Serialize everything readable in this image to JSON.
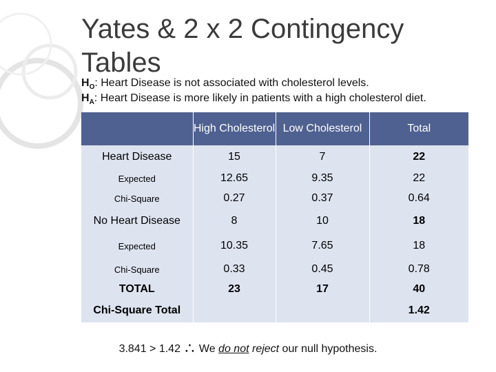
{
  "title": "Yates & 2 x 2 Contingency Tables",
  "hypotheses": {
    "h0_symbol": "H",
    "h0_sub": "O",
    "h0_text": ": Heart Disease is not associated with cholesterol levels.",
    "ha_symbol": "H",
    "ha_sub": "A",
    "ha_text": ": Heart Disease is more likely in patients with a high cholesterol diet."
  },
  "table": {
    "headers": [
      "",
      "High Cholesterol",
      "Low Cholesterol",
      "Total"
    ],
    "rows": [
      {
        "label": "Heart Disease",
        "cells": [
          "15",
          "7",
          "22"
        ]
      },
      {
        "label": "Expected",
        "cells": [
          "12.65",
          "9.35",
          "22"
        ]
      },
      {
        "label": "Chi-Square",
        "cells": [
          "0.27",
          "0.37",
          "0.64"
        ]
      },
      {
        "label": "No Heart Disease",
        "cells": [
          "8",
          "10",
          "18"
        ]
      },
      {
        "label": "Expected",
        "cells": [
          "10.35",
          "7.65",
          "18"
        ]
      },
      {
        "label": "Chi-Square",
        "cells": [
          "0.33",
          "0.45",
          "0.78"
        ]
      },
      {
        "label": "TOTAL",
        "cells": [
          "23",
          "17",
          "40"
        ]
      },
      {
        "label": "Chi-Square Total",
        "cells": [
          "",
          "",
          "1.42"
        ]
      }
    ]
  },
  "conclusion": {
    "lead": "3.841 > 1.42",
    "therefore": "∴",
    "we": " We ",
    "do_not": "do not",
    "reject": "reject",
    "tail": " our null hypothesis."
  },
  "colors": {
    "header_bg": "#4f6190",
    "row_bg": "#dde3ef",
    "title": "#3b3b3b"
  }
}
